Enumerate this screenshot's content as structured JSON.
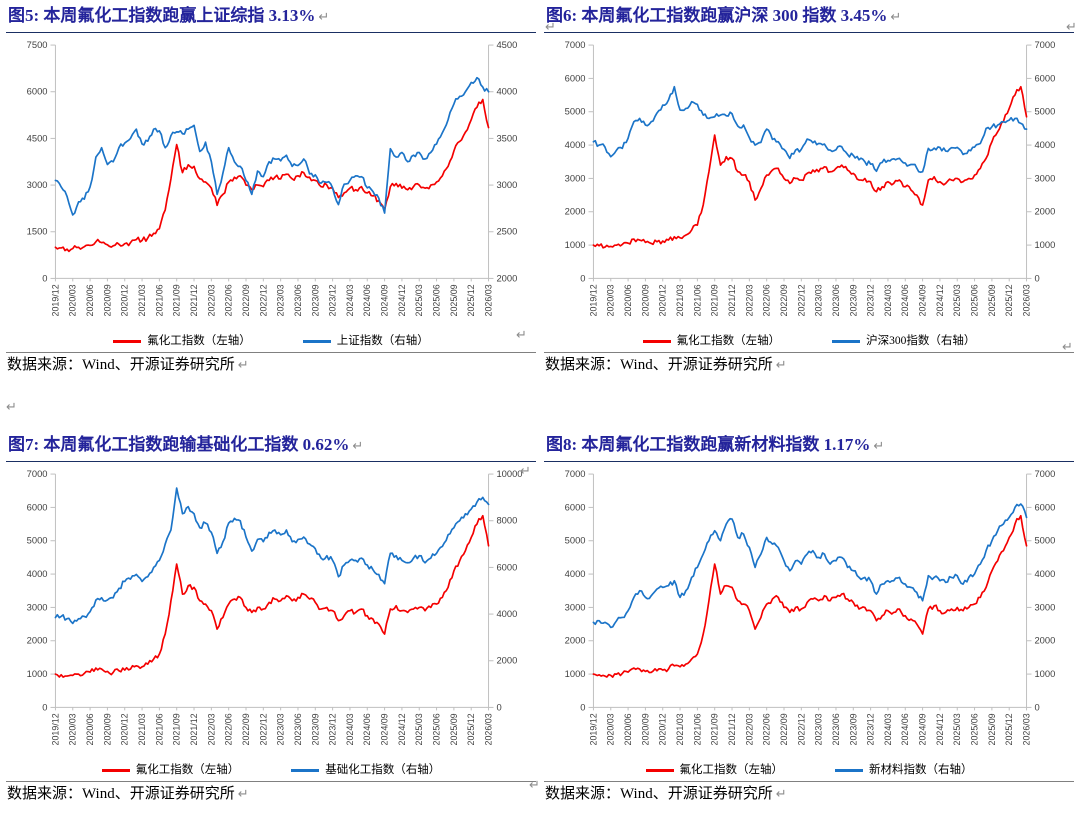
{
  "marks": {
    "ret": "↵"
  },
  "colors": {
    "red": "#F40000",
    "blue": "#1B74C8",
    "title": "#24249B",
    "rule": "#1A2F63",
    "divider": "#808080",
    "axis_line": "#BFBFBF",
    "axis_text": "#404040",
    "return_mark": "#8C8C8C"
  },
  "chart_data": [
    {
      "type": "line",
      "title": "图5: 本周氟化工指数跑赢上证综指 3.13%",
      "source": "数据来源：Wind、开源证券研究所",
      "legend_position": "bottom",
      "grid": false,
      "sampling": "monthly points from 2019/12 to 2026/03",
      "categories": [
        "2019/12",
        "2020/03",
        "2020/06",
        "2020/09",
        "2020/12",
        "2021/03",
        "2021/06",
        "2021/09",
        "2021/12",
        "2022/03",
        "2022/06",
        "2022/09",
        "2022/12",
        "2023/03",
        "2023/06",
        "2023/09",
        "2023/12",
        "2024/03",
        "2024/06",
        "2024/09",
        "2024/12",
        "2025/03",
        "2025/06",
        "2025/09",
        "2025/12",
        "2026/03"
      ],
      "left_axis": {
        "min": 0,
        "max": 7500,
        "ticks": [
          0,
          1500,
          3000,
          4500,
          6000,
          7500
        ]
      },
      "right_axis": {
        "min": 2000,
        "max": 4500,
        "ticks": [
          2000,
          2500,
          3000,
          3500,
          4000,
          4500
        ]
      },
      "series": [
        {
          "name": "氟化工指数（左轴）",
          "axis": "left",
          "color": "red",
          "values": [
            1000,
            980,
            940,
            960,
            1000,
            1020,
            1060,
            1180,
            1150,
            1080,
            1050,
            1100,
            1120,
            1150,
            1250,
            1220,
            1300,
            1450,
            1600,
            2200,
            3200,
            4300,
            3400,
            3650,
            3600,
            3200,
            3100,
            2900,
            2350,
            2700,
            3100,
            3250,
            3300,
            3000,
            2850,
            3000,
            2950,
            3150,
            3250,
            3200,
            3350,
            3200,
            3300,
            3400,
            3250,
            3150,
            2950,
            3000,
            2900,
            2600,
            2750,
            2900,
            2850,
            2950,
            2750,
            2650,
            2500,
            2200,
            2950,
            3050,
            2900,
            2850,
            2950,
            3000,
            2900,
            3000,
            3100,
            3300,
            3600,
            4100,
            4400,
            4700,
            5100,
            5500,
            5750,
            4850
          ]
        },
        {
          "name": "上证指数（右轴）",
          "axis": "right",
          "color": "blue",
          "values": [
            3050,
            2980,
            2880,
            2680,
            2820,
            2850,
            2980,
            3300,
            3400,
            3220,
            3250,
            3400,
            3450,
            3500,
            3600,
            3440,
            3470,
            3600,
            3580,
            3400,
            3530,
            3570,
            3550,
            3600,
            3640,
            3360,
            3460,
            3250,
            2900,
            3130,
            3400,
            3250,
            3200,
            3050,
            2900,
            3150,
            3090,
            3250,
            3280,
            3260,
            3320,
            3200,
            3210,
            3280,
            3120,
            3110,
            3020,
            3030,
            2970,
            2790,
            3010,
            3050,
            3100,
            3090,
            2970,
            2930,
            2860,
            2700,
            3390,
            3300,
            3350,
            3250,
            3320,
            3350,
            3280,
            3350,
            3440,
            3560,
            3700,
            3870,
            3950,
            4000,
            4100,
            4150,
            4050,
            4000
          ]
        }
      ]
    },
    {
      "type": "line",
      "title": "图6: 本周氟化工指数跑赢沪深 300 指数 3.45%",
      "source": "数据来源：Wind、开源证券研究所",
      "legend_position": "bottom",
      "grid": false,
      "sampling": "monthly points from 2019/12 to 2026/03",
      "categories": [
        "2019/12",
        "2020/03",
        "2020/06",
        "2020/09",
        "2020/12",
        "2021/03",
        "2021/06",
        "2021/09",
        "2021/12",
        "2022/03",
        "2022/06",
        "2022/09",
        "2022/12",
        "2023/03",
        "2023/06",
        "2023/09",
        "2023/12",
        "2024/03",
        "2024/06",
        "2024/09",
        "2024/12",
        "2025/03",
        "2025/06",
        "2025/09",
        "2025/12",
        "2026/03"
      ],
      "left_axis": {
        "min": 0,
        "max": 7000,
        "ticks": [
          0,
          1000,
          2000,
          3000,
          4000,
          5000,
          6000,
          7000
        ]
      },
      "right_axis": {
        "min": 0,
        "max": 7000,
        "ticks": [
          0,
          1000,
          2000,
          3000,
          4000,
          5000,
          6000,
          7000
        ]
      },
      "series": [
        {
          "name": "氟化工指数（左轴）",
          "axis": "left",
          "color": "red",
          "values": [
            1000,
            980,
            940,
            960,
            1000,
            1020,
            1060,
            1180,
            1150,
            1080,
            1050,
            1100,
            1120,
            1150,
            1250,
            1220,
            1300,
            1450,
            1600,
            2200,
            3200,
            4300,
            3400,
            3650,
            3600,
            3200,
            3100,
            2900,
            2350,
            2700,
            3100,
            3250,
            3300,
            3000,
            2850,
            3000,
            2950,
            3150,
            3250,
            3200,
            3350,
            3200,
            3300,
            3400,
            3250,
            3150,
            2950,
            3000,
            2900,
            2600,
            2750,
            2900,
            2850,
            2950,
            2750,
            2650,
            2500,
            2200,
            2950,
            3050,
            2900,
            2850,
            2950,
            3000,
            2900,
            3000,
            3100,
            3300,
            3600,
            4100,
            4400,
            4700,
            5100,
            5500,
            5750,
            4850
          ]
        },
        {
          "name": "沪深300指数（右轴）",
          "axis": "right",
          "color": "blue",
          "values": [
            4100,
            4000,
            3940,
            3650,
            3850,
            3900,
            4200,
            4700,
            4800,
            4600,
            4700,
            4960,
            5200,
            5350,
            5750,
            5050,
            5100,
            5300,
            5220,
            4900,
            4800,
            4850,
            4900,
            4880,
            4940,
            4570,
            4600,
            4220,
            4000,
            4080,
            4480,
            4170,
            4100,
            3870,
            3600,
            3850,
            3870,
            4180,
            4070,
            4050,
            4030,
            3850,
            3860,
            3950,
            3720,
            3690,
            3560,
            3500,
            3430,
            3215,
            3480,
            3540,
            3590,
            3600,
            3460,
            3420,
            3310,
            3200,
            3900,
            3910,
            3930,
            3820,
            3920,
            3930,
            3720,
            3850,
            3940,
            4050,
            4500,
            4550,
            4600,
            4700,
            4750,
            4800,
            4650,
            4480
          ]
        }
      ]
    },
    {
      "type": "line",
      "title": "图7: 本周氟化工指数跑输基础化工指数 0.62%",
      "source": "数据来源：Wind、开源证券研究所",
      "legend_position": "bottom",
      "grid": false,
      "sampling": "monthly points from 2019/12 to 2026/03",
      "categories": [
        "2019/12",
        "2020/03",
        "2020/06",
        "2020/09",
        "2020/12",
        "2021/03",
        "2021/06",
        "2021/09",
        "2021/12",
        "2022/03",
        "2022/06",
        "2022/09",
        "2022/12",
        "2023/03",
        "2023/06",
        "2023/09",
        "2023/12",
        "2024/03",
        "2024/06",
        "2024/09",
        "2024/12",
        "2025/03",
        "2025/06",
        "2025/09",
        "2025/12",
        "2026/03"
      ],
      "left_axis": {
        "min": 0,
        "max": 7000,
        "ticks": [
          0,
          1000,
          2000,
          3000,
          4000,
          5000,
          6000,
          7000
        ]
      },
      "right_axis": {
        "min": 0,
        "max": 10000,
        "ticks": [
          0,
          2000,
          4000,
          6000,
          8000,
          10000
        ]
      },
      "series": [
        {
          "name": "氟化工指数（左轴）",
          "axis": "left",
          "color": "red",
          "values": [
            1000,
            980,
            940,
            960,
            1000,
            1020,
            1060,
            1180,
            1150,
            1080,
            1050,
            1100,
            1120,
            1150,
            1250,
            1220,
            1300,
            1450,
            1600,
            2200,
            3200,
            4300,
            3400,
            3650,
            3600,
            3200,
            3100,
            2900,
            2350,
            2700,
            3100,
            3250,
            3300,
            3000,
            2850,
            3000,
            2950,
            3150,
            3250,
            3200,
            3350,
            3200,
            3300,
            3400,
            3250,
            3150,
            2950,
            3000,
            2900,
            2600,
            2750,
            2900,
            2850,
            2950,
            2750,
            2650,
            2500,
            2200,
            2950,
            3050,
            2900,
            2850,
            2950,
            3000,
            2900,
            3000,
            3100,
            3300,
            3600,
            4100,
            4400,
            4700,
            5100,
            5500,
            5750,
            4850
          ]
        },
        {
          "name": "基础化工指数（右轴）",
          "axis": "right",
          "color": "blue",
          "values": [
            3850,
            3900,
            3800,
            3600,
            3800,
            3900,
            4100,
            4600,
            4700,
            4600,
            4700,
            5100,
            5400,
            5500,
            5700,
            5400,
            5600,
            6000,
            6300,
            7000,
            7600,
            9400,
            8300,
            8600,
            8300,
            7700,
            7900,
            7500,
            6600,
            7100,
            7900,
            8100,
            8000,
            7300,
            6700,
            7200,
            7100,
            7500,
            7600,
            7400,
            7600,
            7100,
            7200,
            7300,
            7000,
            6800,
            6400,
            6500,
            6300,
            5600,
            6100,
            6300,
            6300,
            6400,
            6100,
            5900,
            5700,
            5300,
            6600,
            6500,
            6300,
            6200,
            6400,
            6500,
            6200,
            6400,
            6600,
            6900,
            7400,
            7700,
            8000,
            8300,
            8500,
            8800,
            9000,
            8700
          ]
        }
      ]
    },
    {
      "type": "line",
      "title": "图8: 本周氟化工指数跑赢新材料指数 1.17%",
      "source": "数据来源：Wind、开源证券研究所",
      "legend_position": "bottom",
      "grid": false,
      "sampling": "monthly points from 2019/12 to 2026/03",
      "categories": [
        "2019/12",
        "2020/03",
        "2020/06",
        "2020/09",
        "2020/12",
        "2021/03",
        "2021/06",
        "2021/09",
        "2021/12",
        "2022/03",
        "2022/06",
        "2022/09",
        "2022/12",
        "2023/03",
        "2023/06",
        "2023/09",
        "2023/12",
        "2024/03",
        "2024/06",
        "2024/09",
        "2024/12",
        "2025/03",
        "2025/06",
        "2025/09",
        "2025/12",
        "2026/03"
      ],
      "left_axis": {
        "min": 0,
        "max": 7000,
        "ticks": [
          0,
          1000,
          2000,
          3000,
          4000,
          5000,
          6000,
          7000
        ]
      },
      "right_axis": {
        "min": 0,
        "max": 7000,
        "ticks": [
          0,
          1000,
          2000,
          3000,
          4000,
          5000,
          6000,
          7000
        ]
      },
      "series": [
        {
          "name": "氟化工指数（左轴）",
          "axis": "left",
          "color": "red",
          "values": [
            1000,
            980,
            940,
            960,
            1000,
            1020,
            1060,
            1180,
            1150,
            1080,
            1050,
            1100,
            1120,
            1150,
            1250,
            1220,
            1300,
            1450,
            1600,
            2200,
            3200,
            4300,
            3400,
            3650,
            3600,
            3200,
            3100,
            2900,
            2350,
            2700,
            3100,
            3250,
            3300,
            3000,
            2850,
            3000,
            2950,
            3150,
            3250,
            3200,
            3350,
            3200,
            3300,
            3400,
            3250,
            3150,
            2950,
            3000,
            2900,
            2600,
            2750,
            2900,
            2850,
            2950,
            2750,
            2650,
            2500,
            2200,
            2950,
            3050,
            2900,
            2850,
            2950,
            3000,
            2900,
            3000,
            3100,
            3300,
            3600,
            4100,
            4400,
            4700,
            5100,
            5500,
            5750,
            4850
          ]
        },
        {
          "name": "新材料指数（右轴）",
          "axis": "right",
          "color": "blue",
          "values": [
            2550,
            2600,
            2550,
            2400,
            2600,
            2700,
            2900,
            3300,
            3500,
            3300,
            3350,
            3550,
            3600,
            3650,
            3800,
            3300,
            3500,
            3900,
            4200,
            4600,
            5000,
            5300,
            5000,
            5500,
            5650,
            5100,
            5200,
            4800,
            4200,
            4600,
            5100,
            4900,
            4800,
            4400,
            4100,
            4400,
            4300,
            4600,
            4700,
            4500,
            4600,
            4300,
            4400,
            4500,
            4200,
            4100,
            3900,
            3900,
            3800,
            3400,
            3700,
            3800,
            3800,
            3900,
            3700,
            3600,
            3450,
            3200,
            3950,
            3900,
            3800,
            3750,
            3900,
            3950,
            3700,
            3900,
            4000,
            4300,
            4700,
            5000,
            5300,
            5500,
            5700,
            6000,
            6100,
            5700
          ]
        }
      ]
    }
  ]
}
